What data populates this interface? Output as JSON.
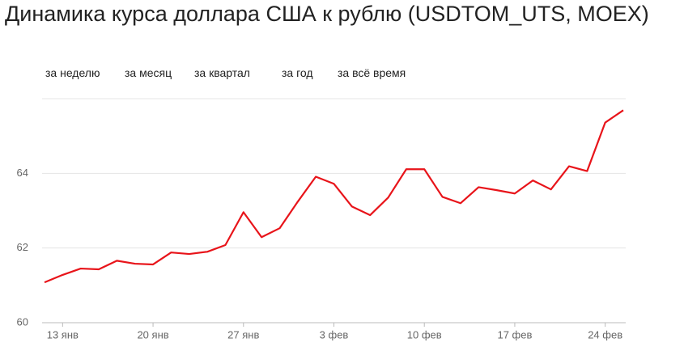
{
  "tabs": [
    "за неделю",
    "за месяц",
    "за квартал",
    "за год",
    "за всё время"
  ],
  "chart_data": {
    "type": "line",
    "title": "Динамика курса доллара США к рублю (USDTOM_UTS, MOEX)",
    "categories": [
      null,
      "13 янв",
      null,
      null,
      null,
      null,
      "20 янв",
      null,
      null,
      null,
      null,
      "27 янв",
      null,
      null,
      null,
      null,
      "3 фев",
      null,
      null,
      null,
      null,
      "10 фев",
      null,
      null,
      null,
      null,
      "17 фев",
      null,
      null,
      null,
      null,
      "24 фев",
      null
    ],
    "series": [
      {
        "color": "#e8141a",
        "values": [
          61.08,
          61.28,
          61.45,
          61.43,
          61.66,
          61.58,
          61.56,
          61.88,
          61.84,
          61.9,
          62.08,
          62.96,
          62.29,
          62.53,
          63.24,
          63.91,
          63.72,
          63.11,
          62.88,
          63.35,
          64.11,
          64.11,
          63.37,
          63.2,
          63.63,
          63.55,
          63.46,
          63.81,
          63.57,
          64.19,
          64.06,
          65.36,
          65.69
        ]
      }
    ],
    "ylim": [
      60,
      66
    ],
    "yticks": [
      60,
      62,
      64
    ],
    "grid": true
  }
}
